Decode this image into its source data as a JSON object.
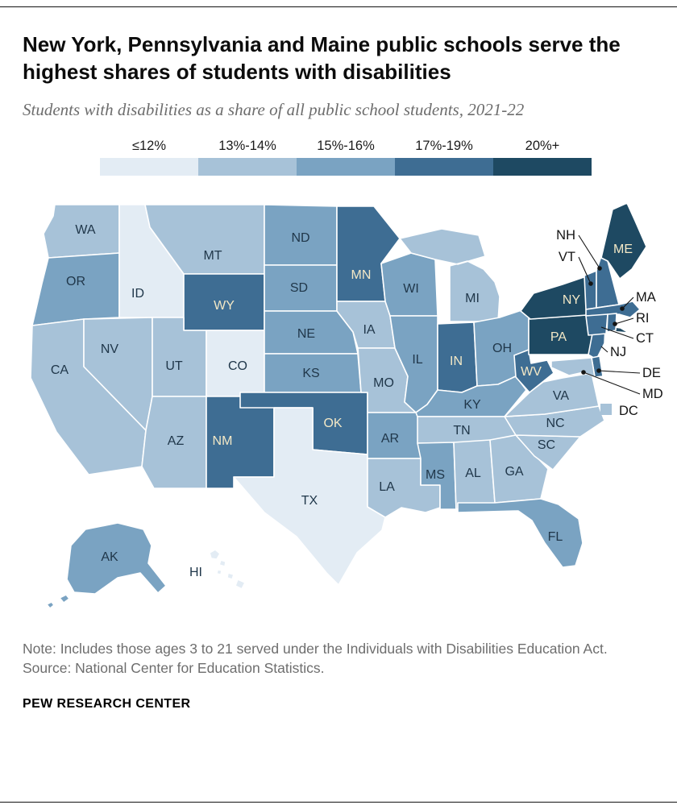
{
  "header": {
    "title": "New York, Pennsylvania and Maine public schools serve the highest shares of students with disabilities",
    "subtitle": "Students with disabilities as a share of all public school students, 2021-22"
  },
  "legend": {
    "items": [
      {
        "label": "≤12%",
        "color": "#e3ecf4"
      },
      {
        "label": "13%-14%",
        "color": "#a7c2d8"
      },
      {
        "label": "15%-16%",
        "color": "#7aa3c2"
      },
      {
        "label": "17%-19%",
        "color": "#3e6d93"
      },
      {
        "label": "20%+",
        "color": "#1e4962"
      }
    ]
  },
  "chart_data": {
    "type": "choropleth",
    "geography": "U.S. states and D.C.",
    "title": "New York, Pennsylvania and Maine public schools serve the highest shares of students with disabilities",
    "subtitle": "Students with disabilities as a share of all public school students, 2021-22",
    "buckets": [
      "≤12%",
      "13%-14%",
      "15%-16%",
      "17%-19%",
      "20%+"
    ],
    "label_colors": {
      "dark": "#20374a",
      "light": "#f3e8c6"
    },
    "states": [
      {
        "code": "WA",
        "bucket": 1
      },
      {
        "code": "OR",
        "bucket": 2
      },
      {
        "code": "CA",
        "bucket": 1
      },
      {
        "code": "ID",
        "bucket": 0
      },
      {
        "code": "NV",
        "bucket": 1
      },
      {
        "code": "MT",
        "bucket": 1
      },
      {
        "code": "WY",
        "bucket": 3
      },
      {
        "code": "UT",
        "bucket": 1
      },
      {
        "code": "CO",
        "bucket": 0
      },
      {
        "code": "AZ",
        "bucket": 1
      },
      {
        "code": "NM",
        "bucket": 3
      },
      {
        "code": "ND",
        "bucket": 2
      },
      {
        "code": "SD",
        "bucket": 2
      },
      {
        "code": "NE",
        "bucket": 2
      },
      {
        "code": "KS",
        "bucket": 2
      },
      {
        "code": "OK",
        "bucket": 3
      },
      {
        "code": "TX",
        "bucket": 0
      },
      {
        "code": "MN",
        "bucket": 3
      },
      {
        "code": "IA",
        "bucket": 1
      },
      {
        "code": "MO",
        "bucket": 1
      },
      {
        "code": "AR",
        "bucket": 2
      },
      {
        "code": "LA",
        "bucket": 1
      },
      {
        "code": "WI",
        "bucket": 2
      },
      {
        "code": "IL",
        "bucket": 2
      },
      {
        "code": "MI",
        "bucket": 1
      },
      {
        "code": "IN",
        "bucket": 3
      },
      {
        "code": "OH",
        "bucket": 2
      },
      {
        "code": "KY",
        "bucket": 2
      },
      {
        "code": "TN",
        "bucket": 1
      },
      {
        "code": "MS",
        "bucket": 2
      },
      {
        "code": "AL",
        "bucket": 1
      },
      {
        "code": "GA",
        "bucket": 1
      },
      {
        "code": "FL",
        "bucket": 2
      },
      {
        "code": "SC",
        "bucket": 1
      },
      {
        "code": "NC",
        "bucket": 1
      },
      {
        "code": "VA",
        "bucket": 1
      },
      {
        "code": "WV",
        "bucket": 3
      },
      {
        "code": "PA",
        "bucket": 4
      },
      {
        "code": "NY",
        "bucket": 4
      },
      {
        "code": "ME",
        "bucket": 4
      },
      {
        "code": "VT",
        "bucket": 3
      },
      {
        "code": "NH",
        "bucket": 3
      },
      {
        "code": "MA",
        "bucket": 3
      },
      {
        "code": "RI",
        "bucket": 3
      },
      {
        "code": "CT",
        "bucket": 3
      },
      {
        "code": "NJ",
        "bucket": 3
      },
      {
        "code": "DE",
        "bucket": 3
      },
      {
        "code": "MD",
        "bucket": 1
      },
      {
        "code": "DC",
        "bucket": 1
      },
      {
        "code": "AK",
        "bucket": 2
      },
      {
        "code": "HI",
        "bucket": 0
      }
    ],
    "callouts": [
      "NH",
      "VT",
      "MA",
      "RI",
      "CT",
      "NJ",
      "DE",
      "MD",
      "DC"
    ]
  },
  "notes": {
    "note": "Note: Includes those ages 3 to 21 served under the Individuals with Disabilities Education Act.",
    "source": "Source: National Center for Education Statistics."
  },
  "footer": {
    "brand": "PEW RESEARCH CENTER"
  }
}
